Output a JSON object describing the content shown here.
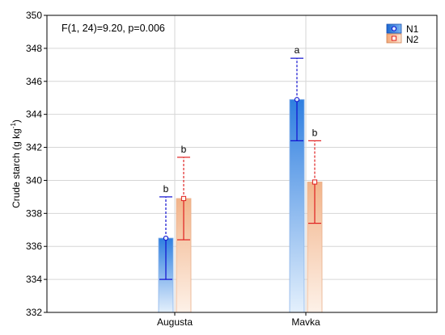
{
  "chart_data": {
    "type": "bar",
    "annotation": "F(1, 24)=9.20, p=0.006",
    "ylabel": "Crude starch (g kg",
    "ylabel_sup": "-1",
    "ylabel_close": ")",
    "ylim": [
      332,
      350
    ],
    "yticks": [
      332,
      334,
      336,
      338,
      340,
      342,
      344,
      346,
      348,
      350
    ],
    "categories": [
      "Augusta",
      "Mavka"
    ],
    "grid": true,
    "legend_position": "top-right",
    "series": [
      {
        "name": "N1",
        "color": "#2f7fe0",
        "line_color": "#1010d0",
        "marker": "circle",
        "values": [
          336.5,
          344.9
        ],
        "error_low": [
          334.0,
          342.4
        ],
        "error_high": [
          339.0,
          347.4
        ],
        "letters": [
          "b",
          "a"
        ]
      },
      {
        "name": "N2",
        "color": "#f0a070",
        "line_color": "#e02020",
        "marker": "square",
        "values": [
          338.9,
          339.9
        ],
        "error_low": [
          336.4,
          337.4
        ],
        "error_high": [
          341.4,
          342.4
        ],
        "letters": [
          "b",
          "b"
        ]
      }
    ]
  }
}
